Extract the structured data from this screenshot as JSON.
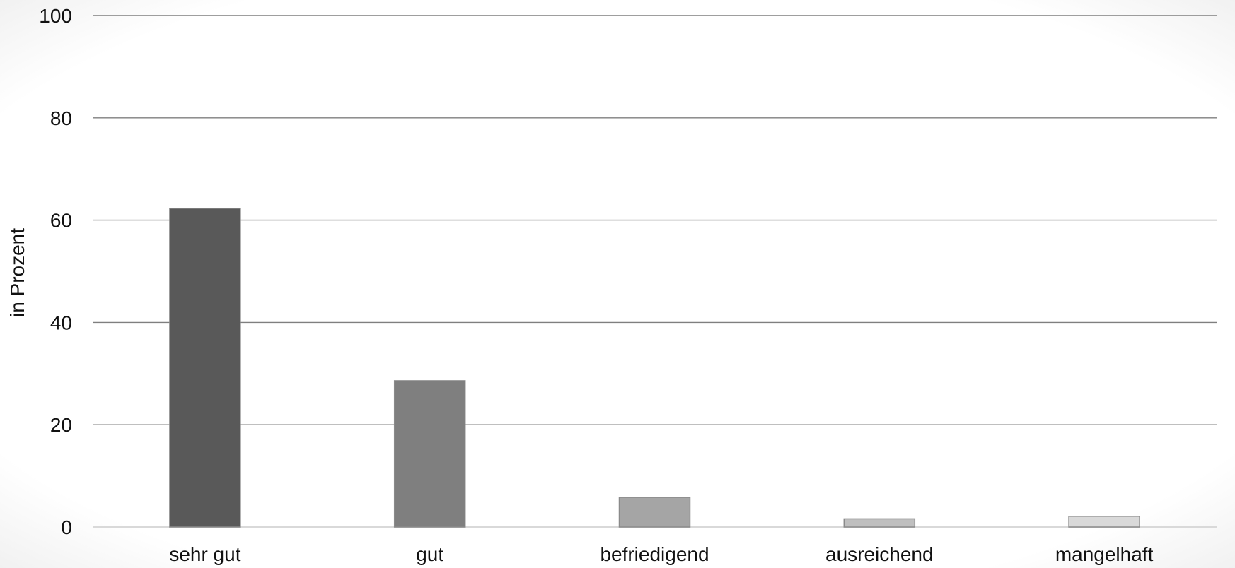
{
  "chart_data": {
    "type": "bar",
    "title": "",
    "xlabel": "",
    "ylabel": "in Prozent",
    "categories": [
      "sehr gut",
      "gut",
      "befriedigend",
      "ausreichend",
      "mangelhaft"
    ],
    "values": [
      62.3,
      28.6,
      5.8,
      1.6,
      2.1
    ],
    "bar_colors": [
      "#595959",
      "#7f7f7f",
      "#a5a5a5",
      "#bfbfbf",
      "#d9d9d9"
    ],
    "bar_edge_color": "#8a8a8a",
    "ylim": [
      0,
      100
    ],
    "yticks": [
      0,
      20,
      40,
      60,
      80,
      100
    ],
    "grid": true,
    "gridline_color": "#7f7f7f",
    "baseline_color": "#d9d9d9",
    "legend": false
  }
}
